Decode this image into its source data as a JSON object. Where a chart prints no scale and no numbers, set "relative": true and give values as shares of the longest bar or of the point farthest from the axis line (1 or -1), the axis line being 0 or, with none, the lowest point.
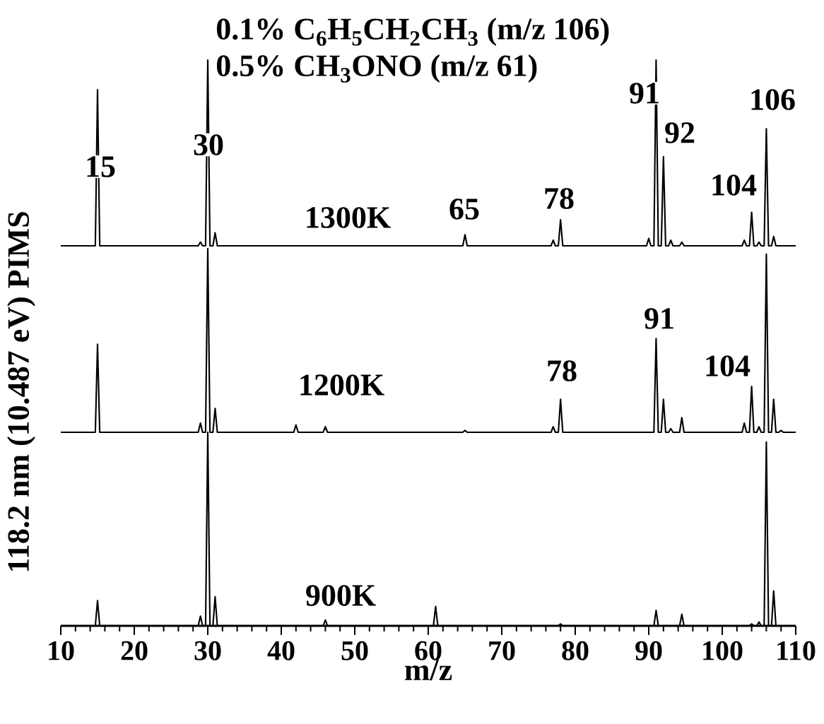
{
  "chart_data": [
    {
      "type": "line",
      "relative": true,
      "title": "0.1% C$_{6}$H$_{5}$CH$_{2}$CH$_{3}$ (m/z 106)",
      "subtitle": "0.5% CH$_{3}$ONO (m/z 61)",
      "xlim": [
        10,
        110
      ],
      "tick_labels": false,
      "series": [
        {
          "color": "#000000",
          "x": [
            10,
            14.7,
            15,
            15.3,
            28.7,
            29,
            29.3,
            29.7,
            30,
            30.3,
            30.7,
            31,
            31.3,
            64.7,
            65,
            65.3,
            76.7,
            77,
            77.3,
            77.7,
            78,
            78.3,
            89.7,
            90,
            90.3,
            90.7,
            91,
            91.3,
            91.7,
            92,
            92.3,
            92.7,
            93,
            93.3,
            94.2,
            94.5,
            94.8,
            102.7,
            103,
            103.3,
            103.7,
            104,
            104.3,
            104.7,
            105,
            105.3,
            105.7,
            106,
            106.3,
            106.7,
            107,
            107.3,
            110
          ],
          "values": [
            0,
            0,
            0.84,
            0,
            0,
            0.02,
            0,
            0,
            1,
            0,
            0,
            0.07,
            0,
            0,
            0.06,
            0,
            0,
            0.03,
            0,
            0,
            0.14,
            0,
            0,
            0.04,
            0,
            0,
            1,
            0,
            0,
            0.48,
            0,
            0,
            0.03,
            0,
            0,
            0.02,
            0,
            0,
            0.03,
            0,
            0,
            0.18,
            0,
            0,
            0.02,
            0,
            0,
            0.63,
            0,
            0,
            0.05,
            0,
            0
          ]
        }
      ],
      "annotations": [
        {
          "text": "15",
          "x": 15,
          "y": 0.84
        },
        {
          "text": "30",
          "x": 30,
          "y": 1
        },
        "1300K",
        {
          "text": "65",
          "x": 65,
          "y": 0.06
        },
        {
          "text": "78",
          "x": 78,
          "y": 0.14
        },
        {
          "text": "91",
          "x": 91,
          "y": 1
        },
        {
          "text": "92",
          "x": 92,
          "y": 0.48
        },
        {
          "text": "104",
          "x": 104,
          "y": 0.18
        },
        {
          "text": "106",
          "x": 106,
          "y": 0.63
        }
      ]
    },
    {
      "type": "line",
      "relative": true,
      "ylabel": "118.2 nm (10.487 eV) PIMS",
      "xlim": [
        10,
        110
      ],
      "tick_labels": false,
      "series": [
        {
          "color": "#000000",
          "x": [
            10,
            14.7,
            15,
            15.3,
            28.7,
            29,
            29.3,
            29.7,
            30,
            30.3,
            30.7,
            31,
            31.3,
            41.7,
            42,
            42.3,
            45.7,
            46,
            46.3,
            64.7,
            65,
            65.3,
            76.7,
            77,
            77.3,
            77.7,
            78,
            78.3,
            90.7,
            91,
            91.3,
            91.7,
            92,
            92.3,
            92.7,
            93,
            93.3,
            94.2,
            94.5,
            94.8,
            102.7,
            103,
            103.3,
            103.7,
            104,
            104.3,
            104.7,
            105,
            105.3,
            105.7,
            106,
            106.3,
            106.7,
            107,
            107.3,
            107.7,
            108,
            108.3,
            110
          ],
          "values": [
            0,
            0,
            0.48,
            0,
            0,
            0.05,
            0,
            0,
            1,
            0,
            0,
            0.13,
            0,
            0,
            0.04,
            0,
            0,
            0.03,
            0,
            0,
            0.01,
            0,
            0,
            0.03,
            0,
            0,
            0.18,
            0,
            0,
            0.51,
            0,
            0,
            0.18,
            0,
            0,
            0.02,
            0,
            0,
            0.08,
            0,
            0,
            0.05,
            0,
            0,
            0.25,
            0,
            0,
            0.03,
            0,
            0,
            0.97,
            0,
            0,
            0.18,
            0,
            0,
            0.01,
            0,
            0
          ]
        }
      ],
      "annotations": [
        "1200K",
        {
          "text": "78",
          "x": 78,
          "y": 0.18
        },
        {
          "text": "91",
          "x": 91,
          "y": 0.51
        },
        {
          "text": "104",
          "x": 104,
          "y": 0.25
        }
      ]
    },
    {
      "type": "line",
      "relative": true,
      "xlabel": "m/z",
      "xlim": [
        10,
        110
      ],
      "xticks": [
        10,
        20,
        30,
        40,
        50,
        60,
        70,
        80,
        90,
        100,
        110
      ],
      "tick_labels": "x",
      "series": [
        {
          "color": "#000000",
          "x": [
            10,
            14.7,
            15,
            15.3,
            28.7,
            29,
            29.3,
            29.7,
            30,
            30.3,
            30.7,
            31,
            31.3,
            45.7,
            46,
            46.3,
            60.7,
            61,
            61.3,
            77.7,
            78,
            78.3,
            90.7,
            91,
            91.3,
            94.2,
            94.5,
            94.8,
            103.7,
            104,
            104.3,
            104.7,
            105,
            105.3,
            105.7,
            106,
            106.3,
            106.7,
            107,
            107.3,
            110
          ],
          "values": [
            0,
            0,
            0.13,
            0,
            0,
            0.05,
            0,
            0,
            1,
            0,
            0,
            0.15,
            0,
            0,
            0.03,
            0,
            0,
            0.1,
            0,
            0,
            0.01,
            0,
            0,
            0.08,
            0,
            0,
            0.06,
            0,
            0,
            0.01,
            0,
            0,
            0.02,
            0,
            0,
            0.95,
            0,
            0,
            0.18,
            0,
            0
          ]
        }
      ],
      "annotations": [
        "900K"
      ]
    }
  ]
}
